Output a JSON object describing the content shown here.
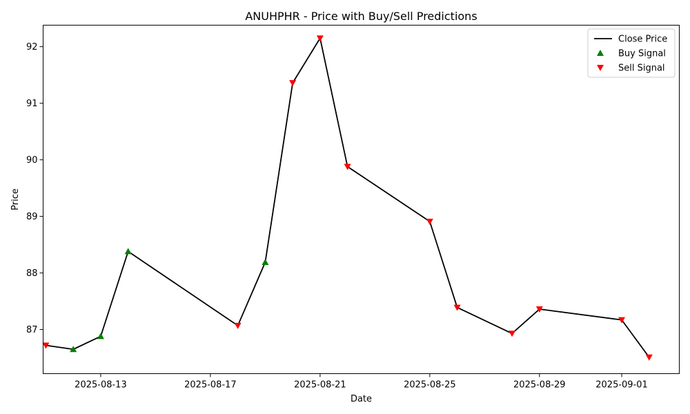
{
  "chart_data": {
    "type": "line",
    "title": "ANUHPHR - Price with Buy/Sell Predictions",
    "xlabel": "Date",
    "ylabel": "Price",
    "x_ticks": [
      "2025-08-13",
      "2025-08-17",
      "2025-08-21",
      "2025-08-25",
      "2025-08-29",
      "2025-09-01"
    ],
    "y_ticks": [
      87,
      88,
      89,
      90,
      91,
      92
    ],
    "xlim": [
      "2025-08-10T21:36",
      "2025-09-03T02:24"
    ],
    "ylim": [
      86.22,
      92.38
    ],
    "grid": false,
    "legend_position": "top-right",
    "legend": [
      "Close Price",
      "Buy Signal",
      "Sell Signal"
    ],
    "colors": {
      "line": "#000000",
      "buy": "#008000",
      "sell": "#ff0000"
    },
    "series": [
      {
        "name": "Close Price",
        "points": [
          {
            "date": "2025-08-11",
            "close": 86.72,
            "signal": "sell"
          },
          {
            "date": "2025-08-12",
            "close": 86.65,
            "signal": "buy"
          },
          {
            "date": "2025-08-13",
            "close": 86.88,
            "signal": "buy"
          },
          {
            "date": "2025-08-14",
            "close": 88.38,
            "signal": "buy"
          },
          {
            "date": "2025-08-18",
            "close": 87.07,
            "signal": "sell"
          },
          {
            "date": "2025-08-19",
            "close": 88.19,
            "signal": "buy"
          },
          {
            "date": "2025-08-20",
            "close": 91.36,
            "signal": "sell"
          },
          {
            "date": "2025-08-21",
            "close": 92.15,
            "signal": "sell"
          },
          {
            "date": "2025-08-22",
            "close": 89.88,
            "signal": "sell"
          },
          {
            "date": "2025-08-25",
            "close": 88.91,
            "signal": "sell"
          },
          {
            "date": "2025-08-26",
            "close": 87.39,
            "signal": "sell"
          },
          {
            "date": "2025-08-28",
            "close": 86.93,
            "signal": "sell"
          },
          {
            "date": "2025-08-29",
            "close": 87.36,
            "signal": "sell"
          },
          {
            "date": "2025-09-01",
            "close": 87.17,
            "signal": "sell"
          },
          {
            "date": "2025-09-02",
            "close": 86.51,
            "signal": "sell"
          }
        ]
      }
    ]
  }
}
